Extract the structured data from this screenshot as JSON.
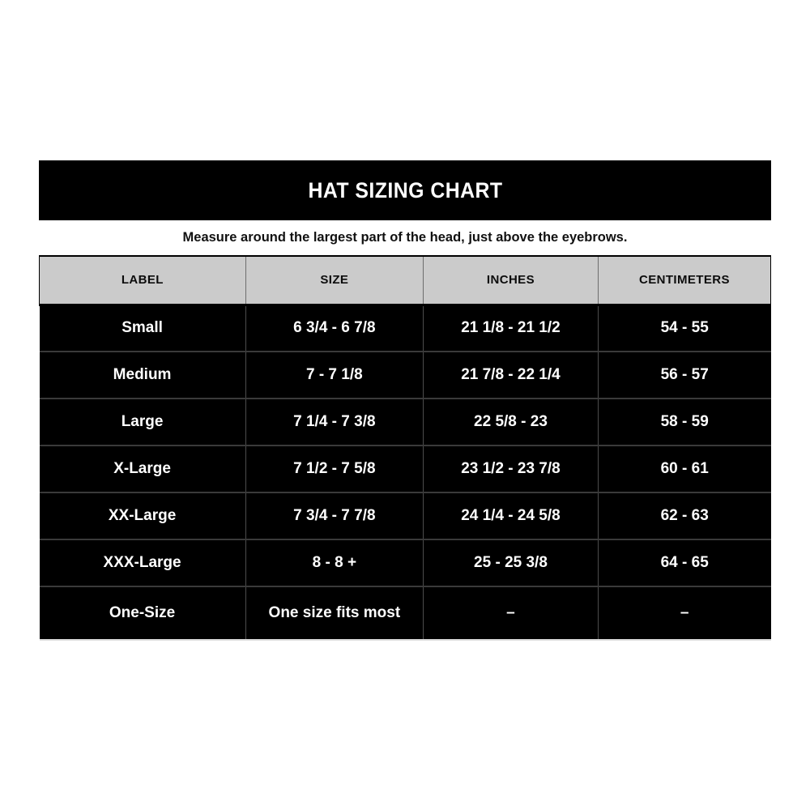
{
  "banner": {
    "title": "HAT SIZING CHART"
  },
  "subtitle": "Measure around the largest part of the head, just above the eyebrows.",
  "colors": {
    "banner_background": "#000000",
    "banner_text": "#ffffff",
    "header_row_background": "#cbcbcb",
    "header_row_text": "#0c0c0c",
    "data_row_background": "#000000",
    "data_row_text": "#ffffff",
    "page_background": "#ffffff"
  },
  "chart_data": {
    "type": "table",
    "title": "HAT SIZING CHART",
    "subtitle": "Measure around the largest part of the head, just above the eyebrows.",
    "columns": [
      "LABEL",
      "SIZE",
      "INCHES",
      "CENTIMETERS"
    ],
    "rows": [
      [
        "Small",
        "6 3/4 - 6 7/8",
        "21 1/8 - 21 1/2",
        "54 - 55"
      ],
      [
        "Medium",
        "7 - 7 1/8",
        "21 7/8 - 22 1/4",
        "56 - 57"
      ],
      [
        "Large",
        "7 1/4 - 7 3/8",
        "22 5/8 - 23",
        "58 - 59"
      ],
      [
        "X-Large",
        "7 1/2 - 7 5/8",
        "23 1/2 - 23 7/8",
        "60 - 61"
      ],
      [
        "XX-Large",
        "7 3/4 - 7 7/8",
        "24 1/4 - 24 5/8",
        "62 - 63"
      ],
      [
        "XXX-Large",
        "8 - 8 +",
        "25 - 25 3/8",
        "64 - 65"
      ],
      [
        "One-Size",
        "One size fits most",
        "–",
        "–"
      ]
    ]
  }
}
